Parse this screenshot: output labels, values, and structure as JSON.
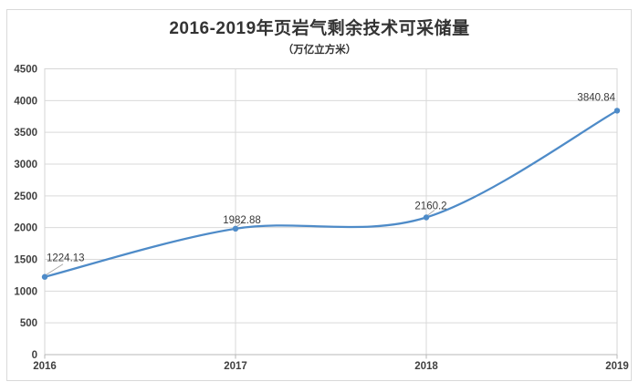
{
  "chart_data": {
    "type": "line",
    "smooth": true,
    "title": "2016-2019年页岩气剩余技术可采储量",
    "subtitle": "（万亿立方米）",
    "categories": [
      "2016",
      "2017",
      "2018",
      "2019"
    ],
    "values": [
      1224.13,
      1982.88,
      2160.2,
      3840.84
    ],
    "point_labels": [
      "1224.13",
      "1982.88",
      "2160.2",
      "3840.84"
    ],
    "xlabel": "",
    "ylabel": "",
    "ylim": [
      0,
      4500
    ],
    "ytick_step": 500,
    "yticks": [
      0,
      500,
      1000,
      1500,
      2000,
      2500,
      3000,
      3500,
      4000,
      4500
    ],
    "grid": true,
    "legend": "none",
    "colors": {
      "line": "#4e8bc8",
      "marker": "#4e8bc8",
      "gridline": "#d9d9d9",
      "plot_border": "#d6d6d6",
      "axis_line": "#b7b7b7",
      "tick_label": "#404040",
      "data_label": "#383838",
      "leader_line": "#a6a6a6",
      "title": "#333333",
      "frame_border": "#d9d9d9",
      "background": "#ffffff"
    }
  }
}
